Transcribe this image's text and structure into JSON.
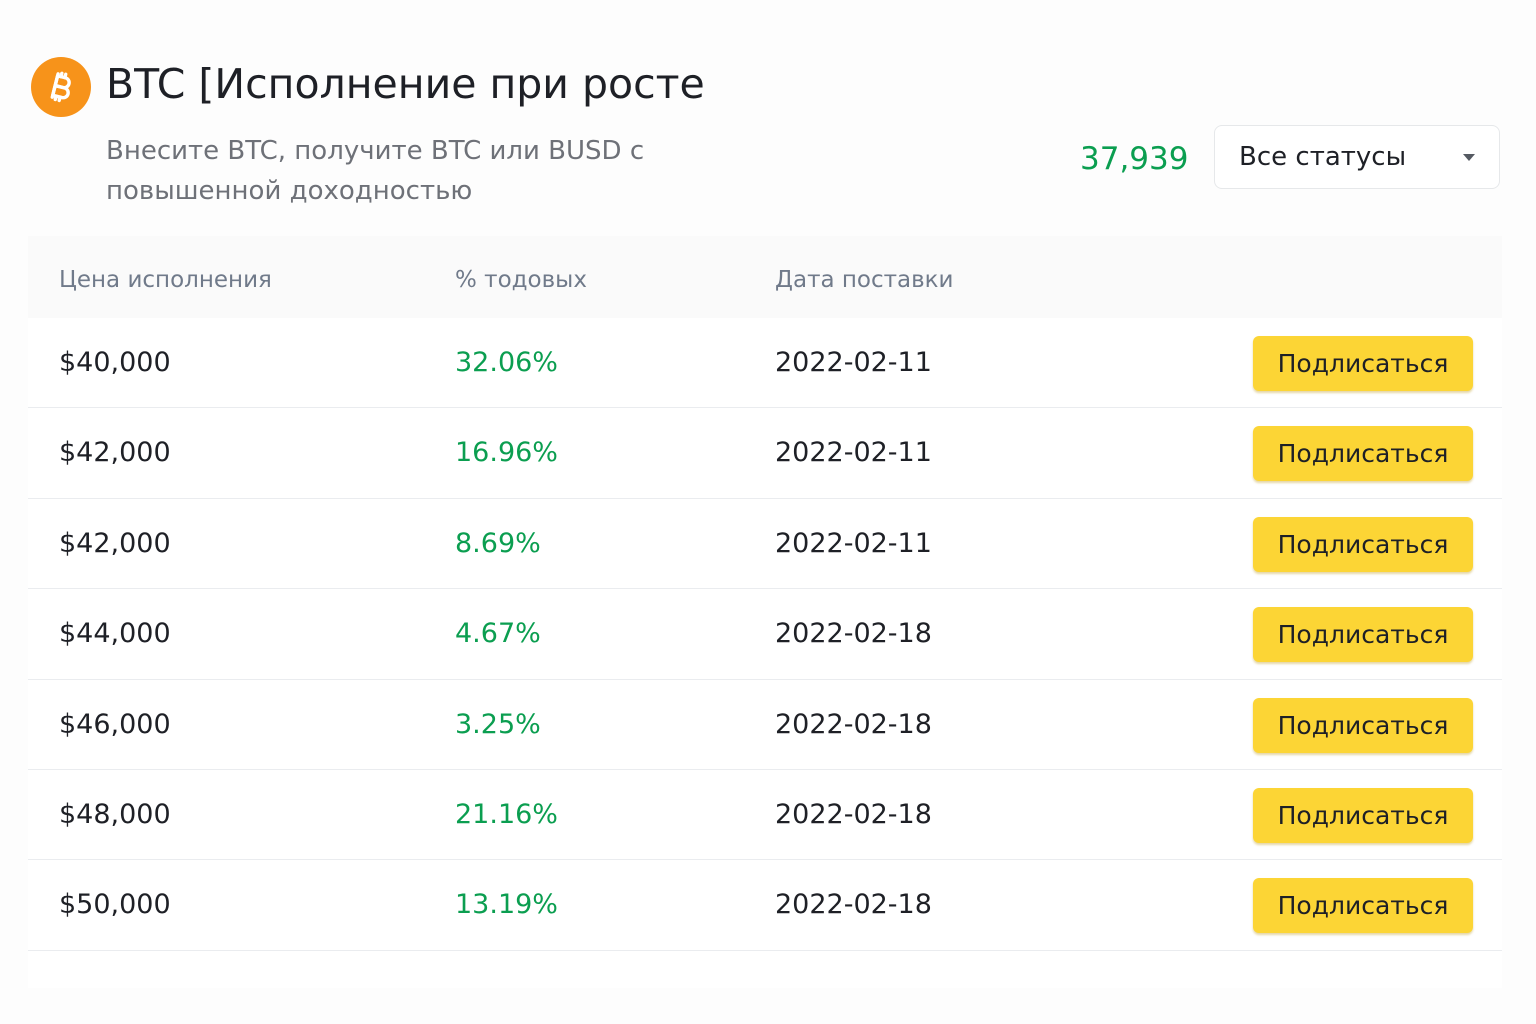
{
  "header": {
    "coin_icon": "bitcoin-icon",
    "coin_color": "#f7931a",
    "title": "BTC [Исполнение при росте",
    "subtitle": "Внесите BTC, получите BTC или BUSD с повышенной доходностью",
    "current_price": "37,939",
    "price_color": "#0b9e50"
  },
  "status_filter": {
    "selected": "Все статусы",
    "icon": "chevron-down-icon"
  },
  "table": {
    "columns": [
      "Цена исполнения",
      "% тодовых",
      "Дата поставки"
    ],
    "rows": [
      {
        "strike_price": "$40,000",
        "apy": "32.06%",
        "settlement_date": "2022-02-11",
        "action": "Подлисаться"
      },
      {
        "strike_price": "$42,000",
        "apy": "16.96%",
        "settlement_date": "2022-02-11",
        "action": "Подлисаться"
      },
      {
        "strike_price": "$42,000",
        "apy": "8.69%",
        "settlement_date": "2022-02-11",
        "action": "Подлисаться"
      },
      {
        "strike_price": "$44,000",
        "apy": "4.67%",
        "settlement_date": "2022-02-18",
        "action": "Подлисаться"
      },
      {
        "strike_price": "$46,000",
        "apy": "3.25%",
        "settlement_date": "2022-02-18",
        "action": "Подлисаться"
      },
      {
        "strike_price": "$48,000",
        "apy": "21.16%",
        "settlement_date": "2022-02-18",
        "action": "Подлисаться"
      },
      {
        "strike_price": "$50,000",
        "apy": "13.19%",
        "settlement_date": "2022-02-18",
        "action": "Подлисаться"
      }
    ]
  },
  "colors": {
    "accent_yellow": "#fcd535",
    "positive_green": "#0b9e50",
    "muted_text": "#707a8a"
  }
}
